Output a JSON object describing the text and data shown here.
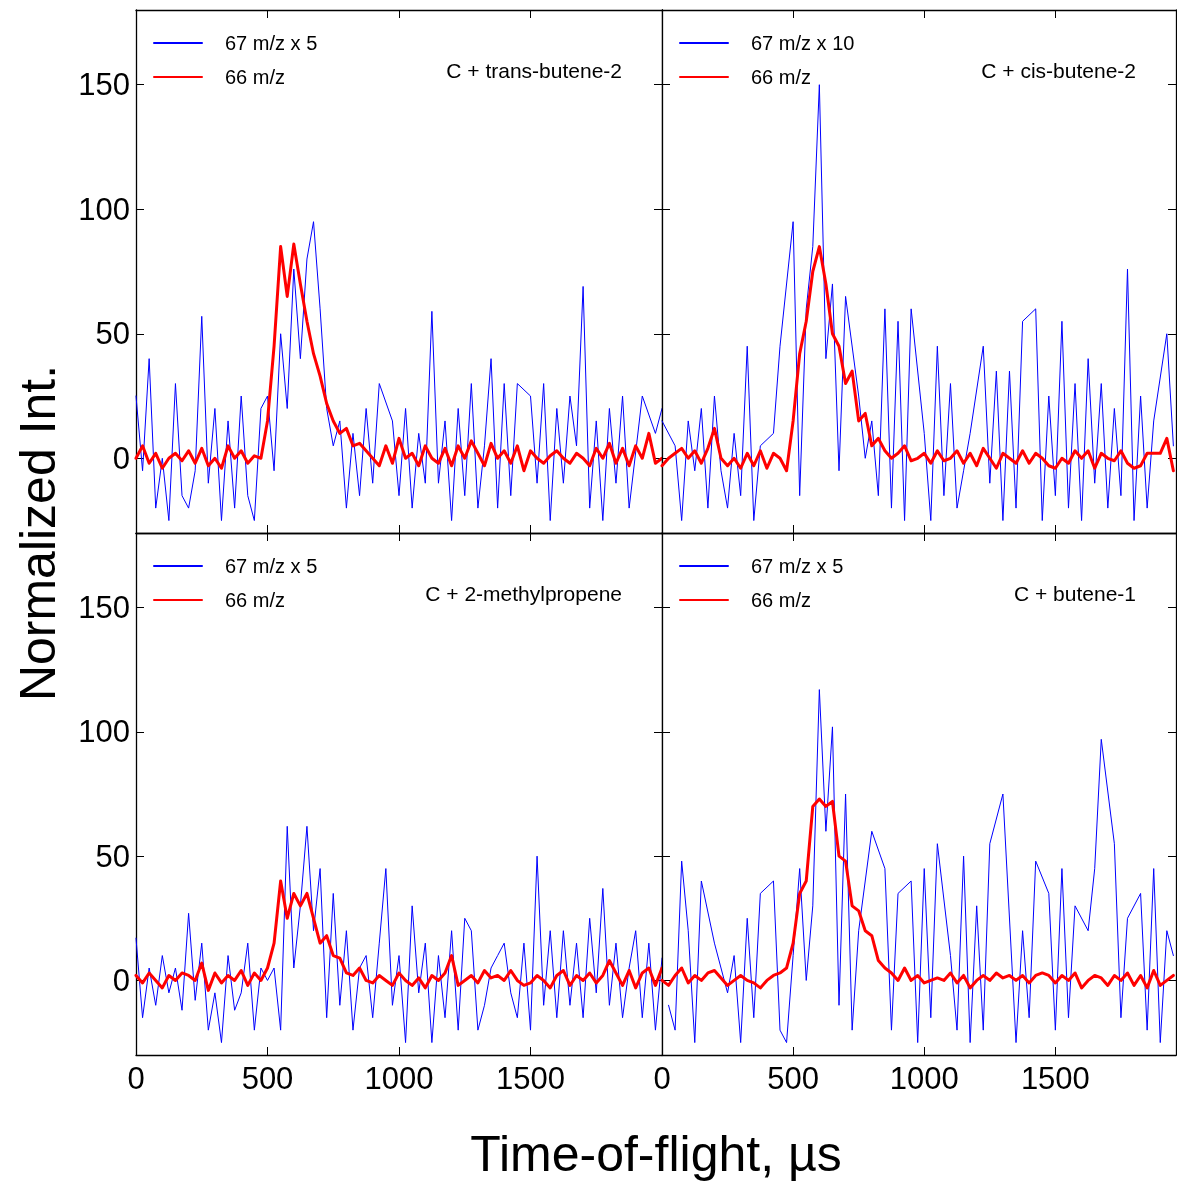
{
  "chart_data": [
    {
      "type": "line",
      "ylabel": "Normalized Int.",
      "annotations": [
        "C + trans-butene-2"
      ],
      "xlim": [
        0,
        2000
      ],
      "ylim": [
        -30,
        180
      ],
      "xticks": [
        0,
        500,
        1000,
        1500
      ],
      "yticks": [
        0,
        50,
        100,
        150
      ],
      "tick_labels": "y",
      "legend": "top left",
      "marker": "none",
      "line_style": "solid",
      "x": [
        0,
        25,
        50,
        75,
        100,
        125,
        150,
        175,
        200,
        225,
        250,
        275,
        300,
        325,
        350,
        375,
        400,
        425,
        450,
        475,
        500,
        525,
        550,
        575,
        600,
        625,
        650,
        675,
        700,
        725,
        750,
        775,
        800,
        825,
        850,
        875,
        900,
        925,
        950,
        975,
        1000,
        1025,
        1050,
        1075,
        1100,
        1125,
        1150,
        1175,
        1200,
        1225,
        1250,
        1275,
        1300,
        1325,
        1350,
        1375,
        1400,
        1425,
        1450,
        1475,
        1500,
        1525,
        1550,
        1575,
        1600,
        1625,
        1650,
        1675,
        1700,
        1725,
        1750,
        1775,
        1800,
        1825,
        1850,
        1875,
        1900,
        1925,
        1950,
        1975,
        2000
      ],
      "series": [
        {
          "name": "67 m/z x 5",
          "color": "#0000ff",
          "values": [
            25,
            -5,
            40,
            -20,
            0,
            -25,
            30,
            -15,
            -20,
            -5,
            57,
            -10,
            20,
            -25,
            15,
            -20,
            25,
            -15,
            -25,
            20,
            25,
            -5,
            50,
            20,
            76,
            40,
            80,
            95,
            60,
            20,
            5,
            15,
            -20,
            10,
            -15,
            20,
            -10,
            30,
            null,
            15,
            -15,
            20,
            -20,
            10,
            -10,
            59,
            -10,
            15,
            -25,
            20,
            -15,
            30,
            -20,
            5,
            40,
            -20,
            30,
            -15,
            30,
            null,
            25,
            -10,
            30,
            -25,
            20,
            -10,
            25,
            5,
            69,
            -20,
            15,
            -25,
            20,
            -10,
            25,
            -20,
            null,
            25,
            null,
            10,
            20
          ]
        },
        {
          "name": "66 m/z",
          "color": "#ff0000",
          "values": [
            0,
            5,
            -2,
            2,
            -4,
            0,
            2,
            -1,
            3,
            -2,
            4,
            -3,
            0,
            -4,
            5,
            0,
            3,
            -2,
            1,
            0,
            15,
            45,
            85,
            65,
            86,
            70,
            55,
            42,
            33,
            22,
            15,
            10,
            12,
            5,
            6,
            3,
            0,
            -3,
            5,
            -2,
            8,
            0,
            2,
            -3,
            5,
            0,
            -2,
            4,
            -3,
            5,
            0,
            7,
            2,
            -3,
            6,
            0,
            3,
            -2,
            5,
            -5,
            3,
            0,
            -2,
            1,
            3,
            0,
            -2,
            2,
            0,
            -3,
            4,
            0,
            6,
            -2,
            4,
            -3,
            5,
            0,
            10,
            -2,
            0
          ]
        }
      ]
    },
    {
      "type": "line",
      "annotations": [
        "C + cis-butene-2"
      ],
      "xlim": [
        0,
        1960
      ],
      "ylim": [
        -30,
        180
      ],
      "xticks": [
        0,
        500,
        1000,
        1500
      ],
      "yticks": [
        0,
        50,
        100,
        150
      ],
      "tick_labels": false,
      "legend": "top left",
      "marker": "none",
      "line_style": "solid",
      "x": [
        0,
        25,
        50,
        75,
        100,
        125,
        150,
        175,
        200,
        225,
        250,
        275,
        300,
        325,
        350,
        375,
        400,
        425,
        450,
        475,
        500,
        525,
        550,
        575,
        600,
        625,
        650,
        675,
        700,
        725,
        750,
        775,
        800,
        825,
        850,
        875,
        900,
        925,
        950,
        975,
        1000,
        1025,
        1050,
        1075,
        1100,
        1125,
        1150,
        1175,
        1200,
        1225,
        1250,
        1275,
        1300,
        1325,
        1350,
        1375,
        1400,
        1425,
        1450,
        1475,
        1500,
        1525,
        1550,
        1575,
        1600,
        1625,
        1650,
        1675,
        1700,
        1725,
        1750,
        1775,
        1800,
        1825,
        1850,
        1875,
        1900,
        1925,
        1950
      ],
      "series": [
        {
          "name": "67 m/z x 10",
          "color": "#0000ff",
          "values": [
            15,
            null,
            5,
            -25,
            15,
            -5,
            20,
            -20,
            25,
            -5,
            -20,
            10,
            -15,
            45,
            -25,
            5,
            null,
            10,
            45,
            null,
            95,
            -15,
            60,
            85,
            150,
            40,
            70,
            -5,
            65,
            null,
            25,
            0,
            15,
            -15,
            60,
            -20,
            55,
            -25,
            60,
            null,
            10,
            -25,
            45,
            -15,
            30,
            -20,
            -5,
            10,
            null,
            45,
            -10,
            35,
            -25,
            35,
            -20,
            55,
            null,
            60,
            -25,
            25,
            -15,
            55,
            -20,
            30,
            -25,
            40,
            -10,
            30,
            -20,
            20,
            -15,
            76,
            -25,
            25,
            -20,
            15,
            null,
            50,
            5
          ]
        },
        {
          "name": "66 m/z",
          "color": "#ff0000",
          "values": [
            -3,
            0,
            2,
            4,
            0,
            3,
            -2,
            4,
            12,
            0,
            -3,
            0,
            -4,
            2,
            -3,
            3,
            -4,
            2,
            0,
            -5,
            15,
            42,
            55,
            75,
            85,
            70,
            50,
            45,
            30,
            35,
            15,
            18,
            5,
            8,
            3,
            0,
            2,
            5,
            -1,
            0,
            2,
            -2,
            3,
            -1,
            0,
            3,
            -2,
            2,
            -3,
            4,
            0,
            -4,
            2,
            0,
            -2,
            3,
            -2,
            2,
            0,
            -3,
            -4,
            0,
            -2,
            3,
            0,
            3,
            -4,
            2,
            0,
            -1,
            3,
            -2,
            -4,
            -3,
            2,
            2,
            2,
            8,
            -5
          ]
        }
      ]
    },
    {
      "type": "line",
      "xlabel": "Time-of-flight, µs",
      "annotations": [
        "C + 2-methylpropene"
      ],
      "xlim": [
        0,
        2000
      ],
      "ylim": [
        -30,
        180
      ],
      "xticks": [
        0,
        500,
        1000,
        1500
      ],
      "yticks": [
        0,
        50,
        100,
        150
      ],
      "legend": "top left",
      "marker": "none",
      "line_style": "solid",
      "x": [
        0,
        25,
        50,
        75,
        100,
        125,
        150,
        175,
        200,
        225,
        250,
        275,
        300,
        325,
        350,
        375,
        400,
        425,
        450,
        475,
        500,
        525,
        550,
        575,
        600,
        625,
        650,
        675,
        700,
        725,
        750,
        775,
        800,
        825,
        850,
        875,
        900,
        925,
        950,
        975,
        1000,
        1025,
        1050,
        1075,
        1100,
        1125,
        1150,
        1175,
        1200,
        1225,
        1250,
        1275,
        1300,
        1325,
        1350,
        1375,
        1400,
        1425,
        1450,
        1475,
        1500,
        1525,
        1550,
        1575,
        1600,
        1625,
        1650,
        1675,
        1700,
        1725,
        1750,
        1775,
        1800,
        1825,
        1850,
        1875,
        1900,
        1925,
        1950,
        1975,
        2000
      ],
      "series": [
        {
          "name": "67 m/z x 5",
          "color": "#0000ff",
          "values": [
            17,
            -15,
            5,
            -10,
            10,
            -5,
            5,
            -12,
            27,
            -8,
            15,
            -20,
            -5,
            -25,
            10,
            -12,
            -5,
            15,
            -20,
            5,
            0,
            5,
            -20,
            62,
            5,
            30,
            62,
            20,
            45,
            -15,
            35,
            -10,
            20,
            -20,
            5,
            10,
            -15,
            15,
            45,
            -10,
            10,
            -25,
            30,
            -5,
            15,
            -25,
            10,
            -15,
            20,
            -20,
            25,
            20,
            -20,
            -10,
            5,
            10,
            15,
            -5,
            -15,
            15,
            -20,
            50,
            -10,
            20,
            -15,
            20,
            -10,
            15,
            -15,
            25,
            -5,
            37,
            -10,
            15,
            -15,
            5,
            20,
            -15,
            15,
            -20,
            9
          ]
        },
        {
          "name": "66 m/z",
          "color": "#ff0000",
          "values": [
            2,
            -1,
            3,
            0,
            -3,
            2,
            0,
            3,
            2,
            0,
            7,
            -4,
            3,
            -1,
            2,
            0,
            4,
            -2,
            3,
            0,
            5,
            15,
            40,
            25,
            35,
            30,
            35,
            25,
            15,
            18,
            10,
            9,
            3,
            2,
            5,
            0,
            -1,
            2,
            0,
            -2,
            3,
            0,
            -2,
            1,
            -3,
            2,
            0,
            3,
            10,
            -2,
            0,
            2,
            -1,
            4,
            1,
            2,
            0,
            4,
            0,
            -2,
            -1,
            2,
            0,
            -3,
            2,
            4,
            -2,
            2,
            0,
            3,
            -1,
            2,
            8,
            3,
            -2,
            4,
            -3,
            3,
            5,
            -2,
            5
          ]
        }
      ]
    },
    {
      "type": "line",
      "annotations": [
        "C + butene-1"
      ],
      "xlim": [
        0,
        1960
      ],
      "ylim": [
        -30,
        180
      ],
      "xticks": [
        0,
        500,
        1000,
        1500
      ],
      "yticks": [
        0,
        50,
        100,
        150
      ],
      "tick_labels": "x",
      "legend": "top left",
      "marker": "none",
      "line_style": "solid",
      "x": [
        0,
        25,
        50,
        75,
        100,
        125,
        150,
        175,
        200,
        225,
        250,
        275,
        300,
        325,
        350,
        375,
        400,
        425,
        450,
        475,
        500,
        525,
        550,
        575,
        600,
        625,
        650,
        675,
        700,
        725,
        750,
        775,
        800,
        825,
        850,
        875,
        900,
        925,
        950,
        975,
        1000,
        1025,
        1050,
        1075,
        1100,
        1125,
        1150,
        1175,
        1200,
        1225,
        1250,
        1275,
        1300,
        1325,
        1350,
        1375,
        1400,
        1425,
        1450,
        1475,
        1500,
        1525,
        1550,
        1575,
        1600,
        1625,
        1650,
        1675,
        1700,
        1725,
        1750,
        1775,
        1800,
        1825,
        1850,
        1875,
        1900,
        1925,
        1950
      ],
      "series": [
        {
          "name": "67 m/z x 5",
          "color": "#0000ff",
          "values": [
            null,
            -10,
            -20,
            48,
            20,
            -25,
            40,
            null,
            15,
            null,
            -5,
            10,
            -25,
            25,
            -15,
            35,
            null,
            40,
            -20,
            -25,
            10,
            45,
            0,
            30,
            117,
            60,
            102,
            -10,
            75,
            -20,
            20,
            null,
            60,
            null,
            45,
            -20,
            35,
            null,
            40,
            -25,
            45,
            -15,
            55,
            null,
            10,
            -20,
            50,
            -25,
            30,
            -20,
            55,
            null,
            75,
            null,
            -25,
            20,
            -15,
            48,
            null,
            35,
            -20,
            45,
            -15,
            30,
            null,
            20,
            45,
            97,
            null,
            55,
            -15,
            25,
            null,
            35,
            -20,
            45,
            -25,
            20,
            10
          ]
        },
        {
          "name": "66 m/z",
          "color": "#ff0000",
          "values": [
            0,
            -2,
            2,
            5,
            -1,
            2,
            0,
            3,
            4,
            1,
            -2,
            0,
            2,
            0,
            -1,
            -3,
            0,
            2,
            3,
            5,
            15,
            35,
            40,
            70,
            73,
            70,
            72,
            50,
            48,
            30,
            28,
            20,
            18,
            8,
            5,
            3,
            0,
            5,
            0,
            2,
            -1,
            0,
            1,
            0,
            3,
            -1,
            2,
            -3,
            0,
            2,
            0,
            3,
            1,
            2,
            0,
            2,
            -1,
            2,
            3,
            2,
            -1,
            2,
            0,
            3,
            -3,
            0,
            2,
            1,
            -2,
            2,
            0,
            3,
            -2,
            2,
            -3,
            4,
            -2,
            0,
            2
          ]
        }
      ]
    }
  ]
}
